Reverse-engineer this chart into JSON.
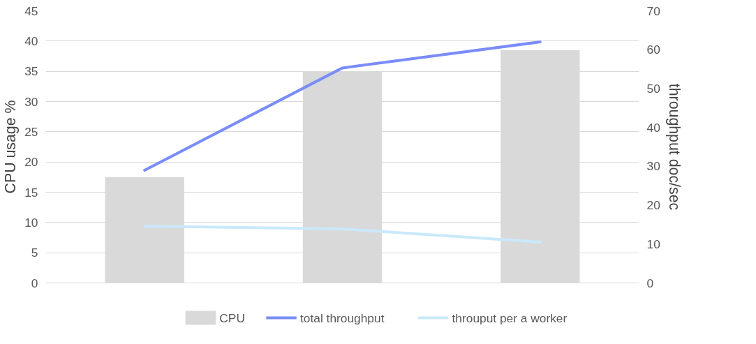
{
  "chart_data": {
    "type": "bar",
    "ylabel": "CPU usage %",
    "y2label": "throughput doc/sec",
    "categories": [
      null,
      null,
      null
    ],
    "series": [
      {
        "name": "CPU",
        "color": "#d9d9d9",
        "values": [
          17.5,
          35,
          38.5
        ]
      },
      {
        "name": "total throughput",
        "type": "line",
        "axis": "y2",
        "color": "#7a8cf8",
        "values": [
          29,
          55.3,
          62
        ]
      },
      {
        "name": "throuput per a worker",
        "type": "line",
        "axis": "y2",
        "color": "#c9e9fb",
        "values": [
          14.6,
          13.9,
          10.5
        ]
      }
    ],
    "ylim": [
      0,
      45
    ],
    "yticks": [
      0,
      5,
      10,
      15,
      20,
      25,
      30,
      35,
      40,
      45
    ],
    "y2lim": [
      0,
      70
    ],
    "y2ticks": [
      0,
      10,
      20,
      30,
      40,
      50,
      60,
      70
    ],
    "grid": "y",
    "legend": "bottom",
    "marker": "none",
    "line_style": "solid"
  }
}
